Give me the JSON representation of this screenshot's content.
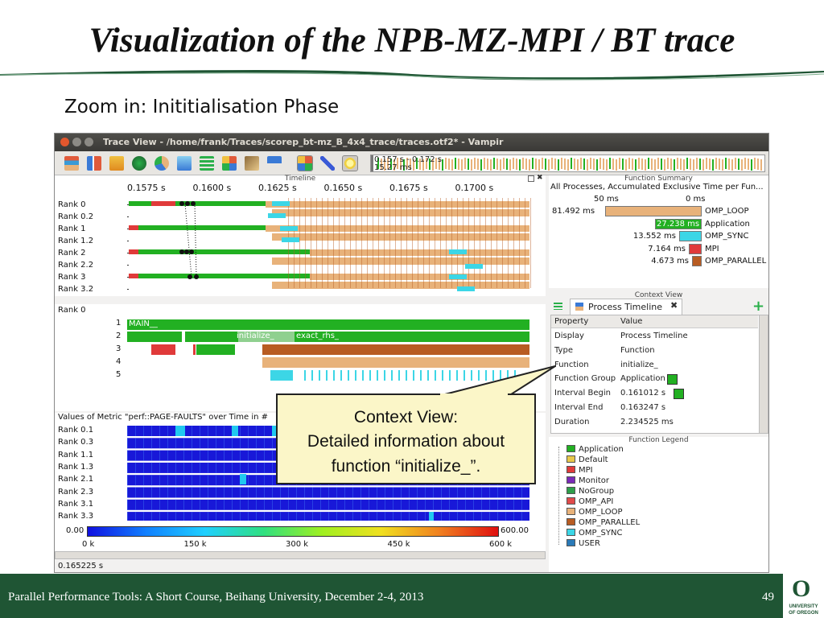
{
  "slide": {
    "title": "Visualization of the NPB-MZ-MPI / BT trace",
    "subtitle": "Zoom in: Inititialisation Phase"
  },
  "window": {
    "title": "Trace View - /home/frank/Traces/scorep_bt-mz_B_4x4_trace/traces.otf2* - Vampir",
    "overview_range": "0.157 s - 0.172 s",
    "overview_duration": "15.27 ms",
    "toolbar_icons": [
      "master-timeline-icon",
      "process-timeline-icon",
      "counter-timeline-icon",
      "performance-radar-icon",
      "function-summary-icon",
      "message-summary-icon",
      "process-summary-icon",
      "communication-matrix-icon",
      "io-summary-icon",
      "call-tree-icon",
      "function-legend-icon",
      "marker-view-icon",
      "context-view-icon"
    ]
  },
  "timeline": {
    "panel_title": "Timeline",
    "ticks": [
      "0.1575 s",
      "0.1600 s",
      "0.1625 s",
      "0.1650 s",
      "0.1675 s",
      "0.1700 s"
    ],
    "ranks": [
      "Rank 0",
      "Rank 0.2",
      "Rank 1",
      "Rank 1.2",
      "Rank 2",
      "Rank 2.2",
      "Rank 3",
      "Rank 3.2"
    ]
  },
  "process_timeline": {
    "rank_label": "Rank 0",
    "levels": [
      "1",
      "2",
      "3",
      "4",
      "5"
    ],
    "main_label": "MAIN__",
    "initialize_label": "initialize_",
    "exact_rhs_label": "exact_rhs_"
  },
  "counter_timeline": {
    "header": "Values of Metric \"perf::PAGE-FAULTS\" over Time in #",
    "ranks": [
      "Rank 0.1",
      "Rank 0.3",
      "Rank 1.1",
      "Rank 1.3",
      "Rank 2.1",
      "Rank 2.3",
      "Rank 3.1",
      "Rank 3.3"
    ],
    "scale_min": "0.00",
    "scale_max": "600.00",
    "axis_ticks": [
      "0 k",
      "150 k",
      "300 k",
      "450 k",
      "600 k"
    ]
  },
  "status_bar": {
    "value": "0.165225 s"
  },
  "function_summary": {
    "panel_title": "Function Summary",
    "header": "All Processes, Accumulated Exclusive Time per Fun...",
    "scale_left": "50 ms",
    "scale_right": "0 ms",
    "rows": [
      {
        "value": "81.492 ms",
        "name": "OMP_LOOP",
        "color": "#e8b27a"
      },
      {
        "value": "27.238 ms",
        "name": "Application",
        "color": "#22b022"
      },
      {
        "value": "13.552 ms",
        "name": "OMP_SYNC",
        "color": "#3cd6e6"
      },
      {
        "value": "7.164 ms",
        "name": "MPI",
        "color": "#e03a3a"
      },
      {
        "value": "4.673 ms",
        "name": "OMP_PARALLEL",
        "color": "#b85c22"
      }
    ]
  },
  "context_view": {
    "panel_title": "Context View",
    "tab_label": "Process Timeline",
    "col_property": "Property",
    "col_value": "Value",
    "rows": [
      {
        "property": "Display",
        "value": "Process Timeline"
      },
      {
        "property": "Type",
        "value": "Function"
      },
      {
        "property": "Function",
        "value": "initialize_"
      },
      {
        "property": "Function Group",
        "value": "Application"
      },
      {
        "property": "Interval Begin",
        "value": "0.161012 s"
      },
      {
        "property": "Interval End",
        "value": "0.163247 s"
      },
      {
        "property": "Duration",
        "value": "2.234525 ms"
      }
    ]
  },
  "function_legend": {
    "panel_title": "Function Legend",
    "items": [
      {
        "name": "Application",
        "color": "#22b022"
      },
      {
        "name": "Default",
        "color": "#e8c84a"
      },
      {
        "name": "MPI",
        "color": "#e03a3a"
      },
      {
        "name": "Monitor",
        "color": "#7a2ab8"
      },
      {
        "name": "NoGroup",
        "color": "#2e9e4a"
      },
      {
        "name": "OMP_API",
        "color": "#e04a4a"
      },
      {
        "name": "OMP_LOOP",
        "color": "#e8b27a"
      },
      {
        "name": "OMP_PARALLEL",
        "color": "#b85c22"
      },
      {
        "name": "OMP_SYNC",
        "color": "#3cd6e6"
      },
      {
        "name": "USER",
        "color": "#2a7ab8"
      }
    ]
  },
  "callout": {
    "line1": "Context View:",
    "line2": "Detailed information about",
    "line3": "function “initialize_”."
  },
  "footer": {
    "text": "Parallel Performance Tools: A Short Course, Beihang University, December 2-4, 2013",
    "page": "49",
    "logo_line1": "UNIVERSITY",
    "logo_line2": "OF OREGON"
  }
}
